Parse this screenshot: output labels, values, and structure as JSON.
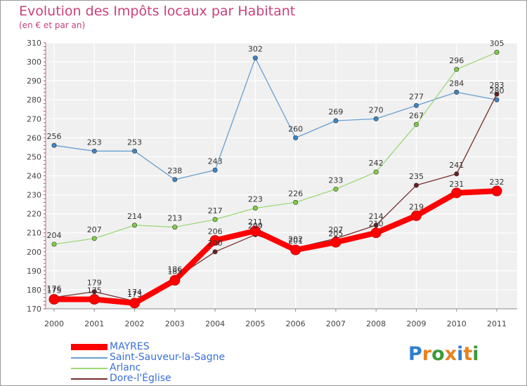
{
  "chart_data": {
    "type": "line",
    "title": "Evolution des Impôts locaux par Habitant",
    "subtitle": "(en € et par an)",
    "xlabel": "",
    "ylabel": "",
    "ylim": [
      170,
      310
    ],
    "yticks": [
      170,
      180,
      190,
      200,
      210,
      220,
      230,
      240,
      250,
      260,
      270,
      280,
      290,
      300,
      310
    ],
    "categories": [
      "2000",
      "2001",
      "2002",
      "2003",
      "2004",
      "2005",
      "2006",
      "2007",
      "2008",
      "2009",
      "2010",
      "2011"
    ],
    "grid": true,
    "legend_position": "bottom-left",
    "series": [
      {
        "name": "Saint-Sauveur-la-Sagne",
        "color": "#6a9fd0",
        "point_color": "#3f86c8",
        "emphasis": false,
        "values": [
          256,
          253,
          253,
          238,
          243,
          302,
          260,
          269,
          270,
          277,
          284,
          280
        ]
      },
      {
        "name": "Arlanc",
        "color": "#9cd876",
        "point_color": "#7fcf45",
        "emphasis": false,
        "values": [
          204,
          207,
          214,
          213,
          217,
          223,
          226,
          233,
          242,
          267,
          296,
          305
        ]
      },
      {
        "name": "Dore-l'Église",
        "color": "#7a2e2e",
        "point_color": "#6b1e22",
        "emphasis": false,
        "values": [
          176,
          179,
          174,
          186,
          200,
          209,
          202,
          207,
          214,
          235,
          241,
          283
        ]
      },
      {
        "name": "MAYRES",
        "color": "#ff0000",
        "point_color": "#ff0000",
        "emphasis": true,
        "values": [
          175,
          175,
          173,
          185,
          206,
          211,
          201,
          205,
          210,
          219,
          231,
          232
        ]
      }
    ],
    "legend_order": [
      "MAYRES",
      "Saint-Sauveur-la-Sagne",
      "Arlanc",
      "Dore-l'Église"
    ]
  },
  "brand": {
    "text": "Proxiti",
    "letter_colors": [
      "#2f7fd0",
      "#e8831f",
      "#3a9a3a",
      "#e8831f",
      "#2f7fd0",
      "#e8831f",
      "#3a9a3a"
    ]
  }
}
